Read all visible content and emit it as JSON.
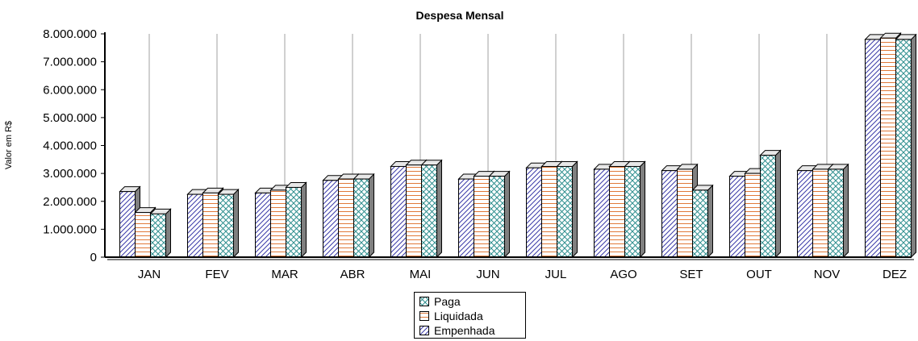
{
  "chart_data": {
    "type": "bar",
    "title": "Despesa Mensal",
    "ylabel": "Valor em R$",
    "xlabel": "",
    "ylim": [
      0,
      8000000
    ],
    "yticks": [
      "0",
      "1.000.000",
      "2.000.000",
      "3.000.000",
      "4.000.000",
      "5.000.000",
      "6.000.000",
      "7.000.000",
      "8.000.000"
    ],
    "ytick_values": [
      0,
      1000000,
      2000000,
      3000000,
      4000000,
      5000000,
      6000000,
      7000000,
      8000000
    ],
    "categories": [
      "JAN",
      "FEV",
      "MAR",
      "ABR",
      "MAI",
      "JUN",
      "JUL",
      "AGO",
      "SET",
      "OUT",
      "NOV",
      "DEZ"
    ],
    "series": [
      {
        "name": "Empenhada",
        "pattern": "diagonal",
        "color": "#3a3aa8",
        "values": [
          2350000,
          2250000,
          2300000,
          2750000,
          3250000,
          2800000,
          3200000,
          3150000,
          3100000,
          2900000,
          3100000,
          7800000
        ]
      },
      {
        "name": "Liquidada",
        "pattern": "horizontal",
        "color": "#e07a3a",
        "values": [
          1600000,
          2300000,
          2400000,
          2800000,
          3300000,
          2900000,
          3250000,
          3250000,
          3150000,
          3000000,
          3150000,
          7850000
        ]
      },
      {
        "name": "Paga",
        "pattern": "cross",
        "color": "#2f8f8f",
        "values": [
          1550000,
          2250000,
          2500000,
          2800000,
          3300000,
          2900000,
          3250000,
          3250000,
          2400000,
          3650000,
          3150000,
          7800000
        ]
      }
    ],
    "legend": [
      "Paga",
      "Liquidada",
      "Empenhada"
    ],
    "legend_position": "bottom-center",
    "grid": "vertical"
  }
}
